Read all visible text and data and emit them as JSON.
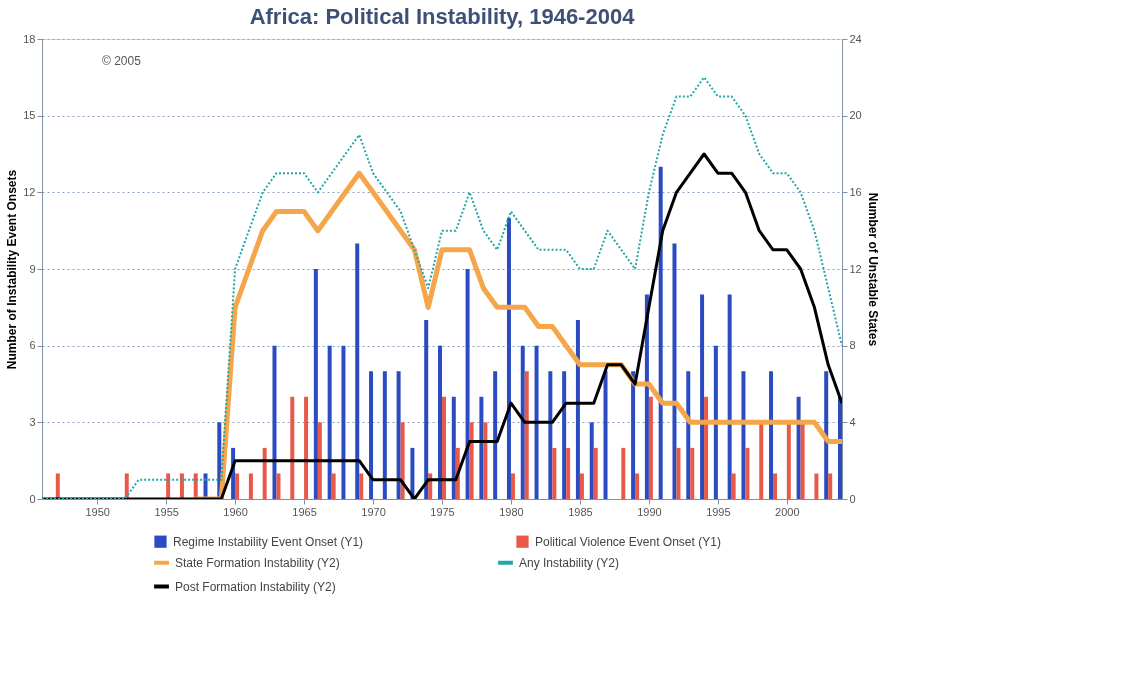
{
  "chart_data": {
    "type": "bar",
    "title": "Africa: Political Instability, 1946-2004",
    "ylabel": "Number of Instability Event Onsets",
    "y2label": "Number of Unstable States",
    "x": [
      1946,
      1947,
      1948,
      1949,
      1950,
      1951,
      1952,
      1953,
      1954,
      1955,
      1956,
      1957,
      1958,
      1959,
      1960,
      1961,
      1962,
      1963,
      1964,
      1965,
      1966,
      1967,
      1968,
      1969,
      1970,
      1971,
      1972,
      1973,
      1974,
      1975,
      1976,
      1977,
      1978,
      1979,
      1980,
      1981,
      1982,
      1983,
      1984,
      1985,
      1986,
      1987,
      1988,
      1989,
      1990,
      1991,
      1992,
      1993,
      1994,
      1995,
      1996,
      1997,
      1998,
      1999,
      2000,
      2001,
      2002,
      2003,
      2004
    ],
    "series": [
      {
        "name": "Regime Instability Event Onset (Y1)",
        "color": "#2b4cc0",
        "values": [
          0,
          0,
          0,
          0,
          0,
          0,
          0,
          0,
          0,
          0,
          0,
          0,
          1,
          3,
          2,
          0,
          0,
          6,
          0,
          0,
          9,
          6,
          6,
          10,
          5,
          5,
          5,
          2,
          7,
          6,
          4,
          9,
          4,
          5,
          11,
          6,
          6,
          5,
          5,
          7,
          3,
          5,
          0,
          5,
          8,
          13,
          10,
          5,
          8,
          6,
          8,
          5,
          0,
          5,
          0,
          4,
          0,
          5,
          4
        ]
      },
      {
        "name": "Political Violence Event Onset (Y1)",
        "color": "#e8594a",
        "values": [
          0,
          1,
          0,
          0,
          0,
          0,
          1,
          0,
          0,
          1,
          1,
          1,
          0,
          0,
          1,
          1,
          2,
          1,
          4,
          4,
          3,
          1,
          0,
          1,
          0,
          0,
          3,
          0,
          1,
          4,
          2,
          3,
          3,
          0,
          1,
          5,
          0,
          2,
          2,
          1,
          2,
          0,
          2,
          1,
          4,
          0,
          2,
          2,
          4,
          0,
          1,
          2,
          3,
          1,
          3,
          3,
          1,
          1,
          0
        ]
      },
      {
        "name": "State Formation Instability (Y2)",
        "type": "line",
        "axis": "y2",
        "line_style": "solid",
        "color": "#f5a54a",
        "values": [
          null,
          null,
          null,
          null,
          null,
          null,
          null,
          null,
          null,
          null,
          null,
          0,
          0,
          0,
          10,
          12,
          14,
          15,
          15,
          15,
          14,
          15,
          16,
          17,
          16,
          15,
          14,
          13,
          10,
          13,
          13,
          13,
          11,
          10,
          10,
          10,
          9,
          9,
          8,
          7,
          7,
          7,
          7,
          6,
          6,
          5,
          5,
          4,
          4,
          4,
          4,
          4,
          4,
          4,
          4,
          4,
          4,
          3,
          3
        ]
      },
      {
        "name": "Post Formation Instability (Y2)",
        "type": "line",
        "axis": "y2",
        "line_style": "solid",
        "color": "#000000",
        "values": [
          0,
          0,
          0,
          0,
          0,
          0,
          0,
          0,
          0,
          0,
          0,
          0,
          0,
          0,
          2,
          2,
          2,
          2,
          2,
          2,
          2,
          2,
          2,
          2,
          1,
          1,
          1,
          0,
          1,
          1,
          1,
          3,
          3,
          3,
          5,
          4,
          4,
          4,
          5,
          5,
          5,
          7,
          7,
          6,
          10,
          14,
          16,
          17,
          18,
          17,
          17,
          16,
          14,
          13,
          13,
          12,
          10,
          7,
          5
        ]
      },
      {
        "name": "Any Instability (Y2)",
        "type": "line",
        "axis": "y2",
        "line_style": "dotted",
        "color": "#22a6a6",
        "values": [
          0,
          0,
          0,
          0,
          0,
          0,
          0,
          1,
          1,
          1,
          1,
          1,
          1,
          1,
          12,
          14,
          16,
          17,
          17,
          17,
          16,
          17,
          18,
          19,
          17,
          16,
          15,
          13,
          11,
          14,
          14,
          16,
          14,
          13,
          15,
          14,
          13,
          13,
          13,
          12,
          12,
          14,
          13,
          12,
          16,
          19,
          21,
          21,
          22,
          21,
          21,
          20,
          18,
          17,
          17,
          16,
          14,
          11,
          8
        ]
      }
    ],
    "xlim": [
      1946,
      2004
    ],
    "xticks": [
      1950,
      1955,
      1960,
      1965,
      1970,
      1975,
      1980,
      1985,
      1990,
      1995,
      2000
    ],
    "ylim": [
      0,
      18
    ],
    "yticks": [
      0,
      3,
      6,
      9,
      12,
      15,
      18
    ],
    "y2lim": [
      0,
      24
    ],
    "y2ticks": [
      0,
      4,
      8,
      12,
      16,
      20,
      24
    ],
    "grid": "y",
    "legend": "bottom",
    "annotations": [
      "© 2005"
    ]
  }
}
